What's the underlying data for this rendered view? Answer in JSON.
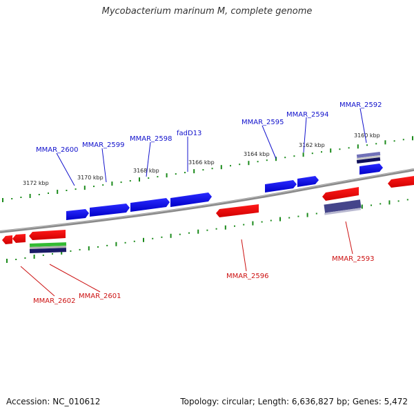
{
  "title": "Mycobacterium marinum M, complete genome",
  "accession": "Accession: NC_010612",
  "topology": "Topology: circular; Length: 6,636,827 bp; Genes: 5,472",
  "colors": {
    "forward_gene": "#0000ee",
    "reverse_gene": "#ee0000",
    "backbone": "#808080",
    "tick": "#1a8a1a",
    "forward_label": "#1010cc",
    "reverse_label": "#cc1010",
    "green_feature": "#33bb33",
    "navy_feature": "#1a1a66",
    "slate_feature": "#44448a"
  },
  "kbp_labels": [
    "3172 kbp",
    "3170 kbp",
    "3168 kbp",
    "3166 kbp",
    "3164 kbp",
    "3162 kbp",
    "3160 kbp"
  ],
  "gene_labels": {
    "forward": [
      "MMAR_2600",
      "MMAR_2599",
      "MMAR_2598",
      "fadD13",
      "MMAR_2595",
      "MMAR_2594",
      "MMAR_2592"
    ],
    "reverse": [
      "MMAR_2602",
      "MMAR_2601",
      "MMAR_2596",
      "MMAR_2593"
    ]
  }
}
